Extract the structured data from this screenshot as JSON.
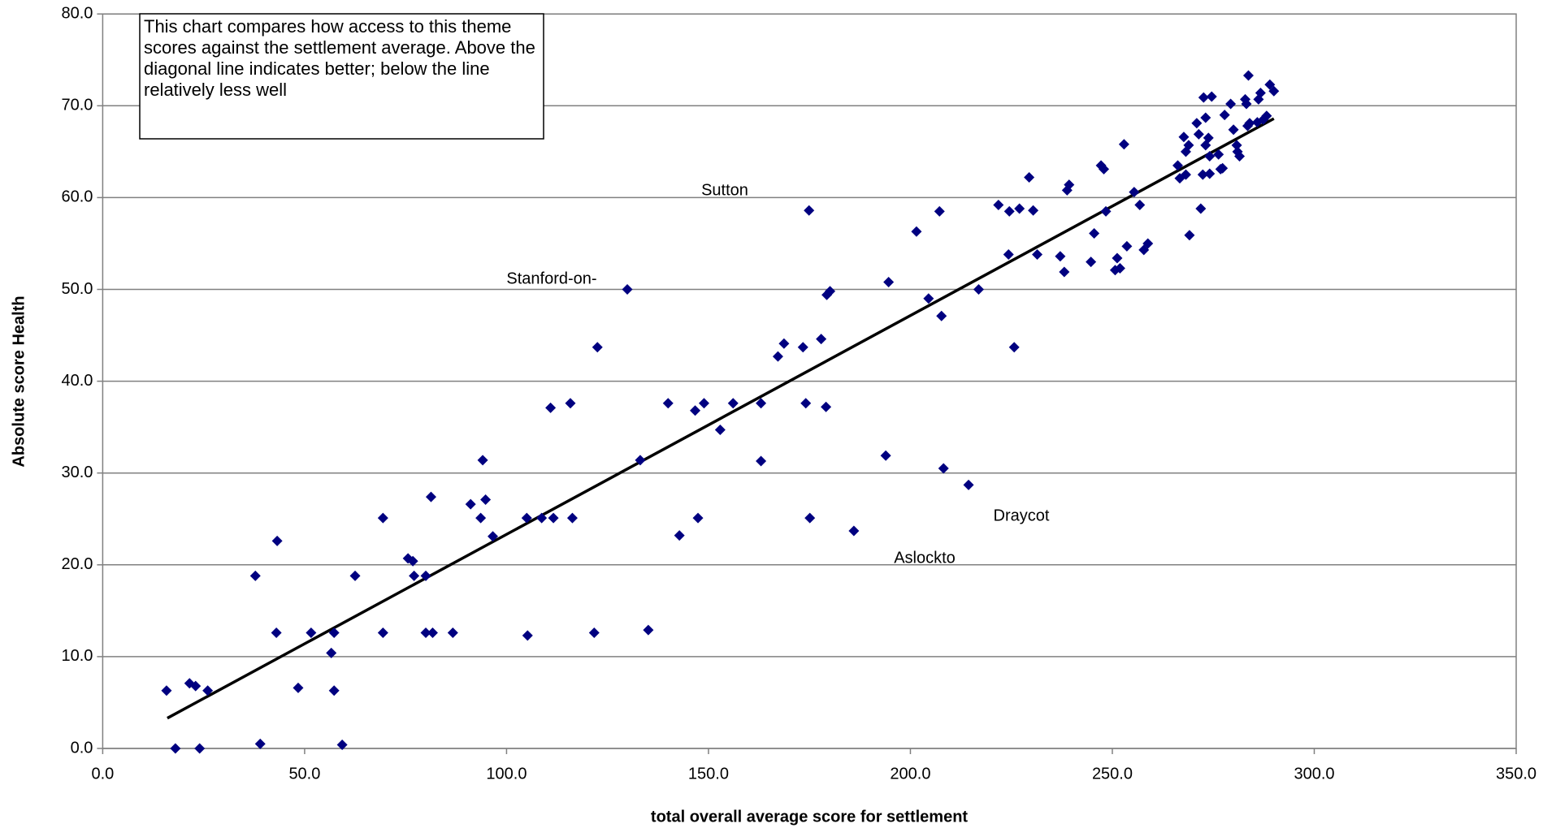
{
  "chart_data": {
    "type": "scatter",
    "note": "This chart compares how access to this theme scores against the settlement average. Above the diagonal line indicates better; below the line relatively less well",
    "xlabel": "total overall average score for settlement",
    "ylabel": "Absolute score Health",
    "color": "#000080",
    "grid": true,
    "xlim": [
      0,
      350
    ],
    "ylim": [
      0,
      80
    ],
    "xticks": [
      {
        "value": 0,
        "label": "0.0"
      },
      {
        "value": 50,
        "label": "50.0"
      },
      {
        "value": 100,
        "label": "100.0"
      },
      {
        "value": 150,
        "label": "150.0"
      },
      {
        "value": 200,
        "label": "200.0"
      },
      {
        "value": 250,
        "label": "250.0"
      },
      {
        "value": 300,
        "label": "300.0"
      },
      {
        "value": 350,
        "label": "350.0"
      }
    ],
    "yticks": [
      {
        "value": 0,
        "label": "0.0"
      },
      {
        "value": 10,
        "label": "10.0"
      },
      {
        "value": 20,
        "label": "20.0"
      },
      {
        "value": 30,
        "label": "30.0"
      },
      {
        "value": 40,
        "label": "40.0"
      },
      {
        "value": 50,
        "label": "50.0"
      },
      {
        "value": 60,
        "label": "60.0"
      },
      {
        "value": 70,
        "label": "70.0"
      },
      {
        "value": 80,
        "label": "80.0"
      }
    ],
    "x": [
      15.8,
      18.0,
      21.5,
      23.0,
      24.0,
      26.0,
      37.8,
      39.0,
      43.0,
      43.2,
      48.4,
      51.6,
      56.6,
      57.3,
      57.3,
      59.3,
      62.5,
      69.4,
      69.4,
      75.6,
      76.8,
      77.1,
      80.0,
      80.0,
      81.3,
      81.7,
      86.7,
      91.1,
      93.6,
      94.1,
      94.8,
      96.6,
      105.0,
      105.2,
      108.7,
      110.9,
      111.6,
      115.8,
      116.3,
      121.7,
      122.5,
      129.9,
      133.1,
      135.1,
      140.0,
      142.8,
      146.7,
      147.4,
      148.9,
      152.9,
      156.1,
      163.0,
      163.0,
      167.2,
      168.7,
      173.4,
      174.1,
      174.9,
      175.1,
      177.9,
      179.1,
      179.3,
      180.1,
      186.0,
      193.9,
      194.6,
      201.5,
      204.5,
      207.2,
      207.7,
      208.2,
      214.4,
      216.9,
      221.8,
      224.3,
      224.5,
      225.7,
      227.0,
      229.4,
      230.4,
      231.4,
      237.1,
      238.1,
      238.8,
      239.3,
      244.7,
      245.5,
      247.2,
      247.9,
      248.4,
      250.7,
      251.2,
      251.9,
      252.9,
      253.6,
      255.4,
      256.8,
      257.8,
      258.8,
      266.2,
      266.7,
      267.7,
      268.2,
      268.2,
      268.9,
      269.1,
      270.9,
      271.4,
      271.9,
      272.4,
      272.6,
      273.1,
      273.1,
      273.8,
      274.1,
      274.6,
      274.1,
      276.3,
      276.8,
      277.3,
      277.8,
      279.3,
      280.0,
      280.8,
      281.0,
      281.5,
      282.9,
      283.2,
      283.5,
      283.7,
      284.0,
      285.9,
      286.2,
      286.7,
      287.4,
      288.2,
      289.0,
      290.0
    ],
    "values": [
      6.3,
      0.0,
      7.1,
      6.8,
      0.0,
      6.3,
      18.8,
      0.5,
      12.6,
      22.6,
      6.6,
      12.6,
      10.4,
      12.6,
      6.3,
      0.4,
      18.8,
      25.1,
      12.6,
      20.7,
      20.4,
      18.8,
      18.8,
      12.6,
      27.4,
      12.6,
      12.6,
      26.6,
      25.1,
      31.4,
      27.1,
      23.1,
      25.1,
      12.3,
      25.1,
      37.1,
      25.1,
      37.6,
      25.1,
      12.6,
      43.7,
      50.0,
      31.4,
      12.9,
      37.6,
      23.2,
      36.8,
      25.1,
      37.6,
      34.7,
      37.6,
      37.6,
      31.3,
      42.7,
      44.1,
      43.7,
      37.6,
      58.6,
      25.1,
      44.6,
      37.2,
      49.4,
      49.8,
      23.7,
      31.9,
      50.8,
      56.3,
      49.0,
      58.5,
      47.1,
      30.5,
      28.7,
      50.0,
      59.2,
      53.8,
      58.5,
      43.7,
      58.8,
      62.2,
      58.6,
      53.8,
      53.6,
      51.9,
      60.8,
      61.4,
      53.0,
      56.1,
      63.5,
      63.1,
      58.5,
      52.1,
      53.4,
      52.3,
      65.8,
      54.7,
      60.6,
      59.2,
      54.3,
      55.0,
      63.5,
      62.1,
      66.6,
      65.0,
      62.5,
      65.7,
      55.9,
      68.1,
      66.9,
      58.8,
      62.5,
      70.9,
      68.7,
      65.7,
      66.5,
      64.5,
      71.0,
      62.6,
      64.7,
      63.1,
      63.2,
      69.0,
      70.2,
      67.4,
      65.7,
      65.0,
      64.5,
      70.7,
      70.2,
      67.8,
      73.3,
      68.1,
      68.2,
      70.7,
      71.4,
      68.5,
      68.9,
      72.3,
      71.6
    ],
    "trendline": {
      "x": [
        16.0,
        290.0
      ],
      "y": [
        3.3,
        68.6
      ],
      "color": "#000000"
    },
    "annotations": [
      "Sutton",
      "Stanford-on-",
      "Draycot",
      "Aslockto"
    ]
  }
}
